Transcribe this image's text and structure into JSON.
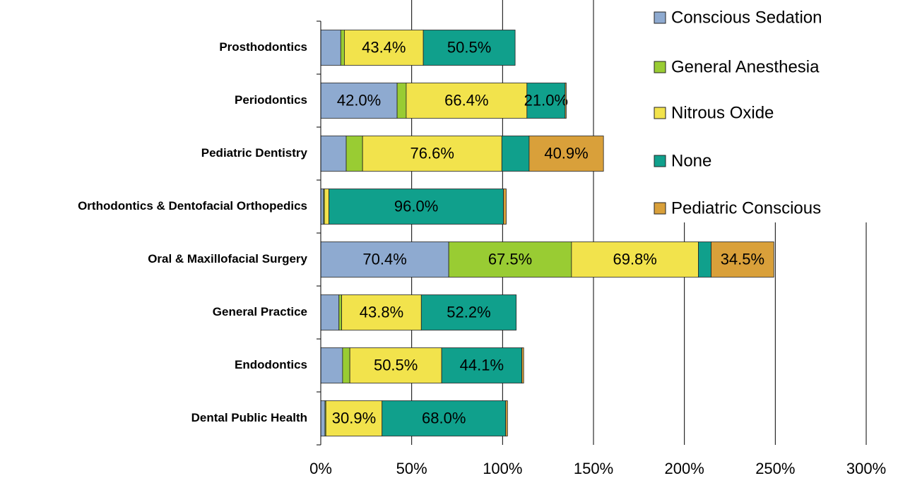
{
  "chart_data": {
    "type": "stacked_bar_horizontal",
    "categories": [
      "Prosthodontics",
      "Periodontics",
      "Pediatric Dentistry",
      "Orthodontics & Dentofacial Orthopedics",
      "Oral & Maxillofacial Surgery",
      "General Practice",
      "Endodontics",
      "Dental Public Health"
    ],
    "series": [
      {
        "name": "Conscious Sedation",
        "color": "#8eaad0",
        "values": [
          11,
          42.0,
          14,
          1.5,
          70.4,
          10,
          12,
          2.3
        ],
        "value_labels": [
          null,
          "42.0%",
          null,
          null,
          "70.4%",
          null,
          null,
          null
        ]
      },
      {
        "name": "General Anesthesia",
        "color": "#99cc33",
        "values": [
          2,
          5,
          9,
          0.5,
          67.5,
          1.5,
          4,
          0.5
        ],
        "value_labels": [
          null,
          null,
          null,
          null,
          "67.5%",
          null,
          null,
          null
        ]
      },
      {
        "name": "Nitrous Oxide",
        "color": "#f2e34c",
        "values": [
          43.4,
          66.4,
          76.6,
          2.5,
          69.8,
          43.8,
          50.5,
          30.9
        ],
        "value_labels": [
          "43.4%",
          "66.4%",
          "76.6%",
          null,
          "69.8%",
          "43.8%",
          "50.5%",
          "30.9%"
        ]
      },
      {
        "name": "None",
        "color": "#10a08c",
        "values": [
          50.5,
          21.0,
          15,
          96.0,
          7,
          52.2,
          44.1,
          68.0
        ],
        "value_labels": [
          "50.5%",
          "21.0%",
          null,
          "96.0%",
          null,
          "52.2%",
          "44.1%",
          "68.0%"
        ]
      },
      {
        "name": "Pediatric Conscious",
        "color": "#d9a03a",
        "values": [
          0,
          0.6,
          40.9,
          1.5,
          34.5,
          0,
          1,
          1
        ],
        "value_labels": [
          null,
          null,
          "40.9%",
          null,
          "34.5%",
          null,
          null,
          null
        ]
      }
    ],
    "xlim": [
      0,
      300
    ],
    "xticks": [
      {
        "value": 0,
        "label": "0%"
      },
      {
        "value": 50,
        "label": "50%"
      },
      {
        "value": 100,
        "label": "100%"
      },
      {
        "value": 150,
        "label": "150%"
      },
      {
        "value": 200,
        "label": "200%"
      },
      {
        "value": 250,
        "label": "250%"
      },
      {
        "value": 300,
        "label": "300%"
      }
    ],
    "grid": true,
    "legend": "top-right"
  }
}
